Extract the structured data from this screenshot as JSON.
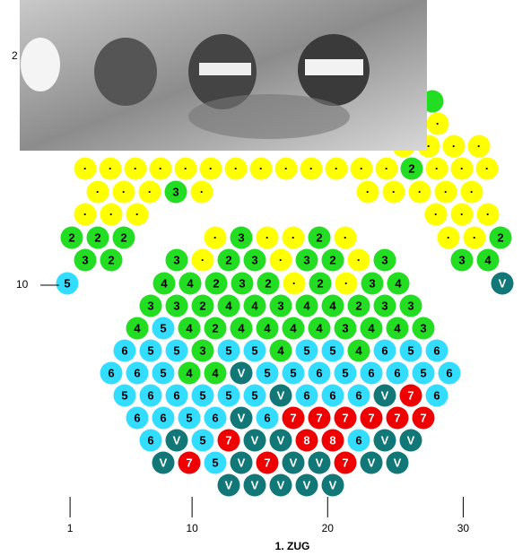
{
  "axis": {
    "xlim": [
      0,
      35
    ],
    "xticks": [
      1,
      10,
      20,
      30
    ],
    "title": "1. ZUG"
  },
  "row_labels": [
    "2",
    "10"
  ],
  "rows": [
    {
      "cells": [
        null
      ],
      "fills": [
        "#2d2"
      ]
    },
    {
      "cells": [
        "·"
      ],
      "fills": [
        "#ff0"
      ]
    },
    {
      "cells": [
        "·",
        "·",
        "·",
        "·"
      ],
      "fills": [
        "#ff0",
        "#ff0",
        "#ff0",
        "#ff0"
      ]
    },
    {
      "cells": [
        "·",
        "·",
        "·",
        "·",
        "·",
        "·",
        "·",
        "·",
        "·",
        "·",
        "·",
        "·",
        "·",
        "2",
        "·",
        "·",
        "·"
      ],
      "fills": [
        "#ff0",
        "#ff0",
        "#ff0",
        "#ff0",
        "#ff0",
        "#ff0",
        "#ff0",
        "#ff0",
        "#ff0",
        "#ff0",
        "#ff0",
        "#ff0",
        "#ff0",
        "#2d2",
        "#ff0",
        "#ff0",
        "#ff0"
      ]
    },
    {
      "cells": [
        "·",
        "·",
        "·",
        "3",
        "·",
        "·",
        "·",
        "·",
        "·",
        "·"
      ],
      "fills": [
        "#ff0",
        "#ff0",
        "#ff0",
        "#2d2",
        "#ff0",
        "#ff0",
        "#ff0",
        "#ff0",
        "#ff0",
        "#ff0"
      ]
    },
    {
      "cells": [
        "·",
        "·",
        "·",
        "·",
        "·",
        "·"
      ],
      "fills": [
        "#ff0",
        "#ff0",
        "#ff0",
        "#ff0",
        "#ff0",
        "#ff0"
      ]
    },
    {
      "cells": [
        "2",
        "2",
        "2",
        "·",
        "3",
        "·",
        "·",
        "2",
        "·",
        "·",
        "·",
        "2"
      ],
      "fills": [
        "#2d2",
        "#2d2",
        "#2d2",
        "#ff0",
        "#2d2",
        "#ff0",
        "#ff0",
        "#2d2",
        "#ff0",
        "#ff0",
        "#ff0",
        "#2d2"
      ]
    },
    {
      "cells": [
        "3",
        "2",
        "3",
        "·",
        "2",
        "3",
        "·",
        "3",
        "2",
        "·",
        "3",
        "3",
        "4"
      ],
      "fills": [
        "#2d2",
        "#2d2",
        "#2d2",
        "#ff0",
        "#2d2",
        "#2d2",
        "#ff0",
        "#2d2",
        "#2d2",
        "#ff0",
        "#2d2",
        "#2d2",
        "#2d2"
      ]
    },
    {
      "cells": [
        "5",
        "4",
        "4",
        "2",
        "3",
        "2",
        "·",
        "2",
        "·",
        "3",
        "4",
        "V"
      ],
      "fills": [
        "#3df",
        "#2d2",
        "#2d2",
        "#2d2",
        "#2d2",
        "#2d2",
        "#ff0",
        "#2d2",
        "#ff0",
        "#2d2",
        "#2d2",
        "#177"
      ]
    },
    {
      "cells": [
        "3",
        "3",
        "2",
        "4",
        "4",
        "3",
        "4",
        "4",
        "2",
        "3",
        "3"
      ],
      "fills": [
        "#2d2",
        "#2d2",
        "#2d2",
        "#2d2",
        "#2d2",
        "#2d2",
        "#2d2",
        "#2d2",
        "#2d2",
        "#2d2",
        "#2d2"
      ]
    },
    {
      "cells": [
        "4",
        "5",
        "4",
        "2",
        "4",
        "4",
        "4",
        "4",
        "3",
        "4",
        "4",
        "3"
      ],
      "fills": [
        "#2d2",
        "#3df",
        "#2d2",
        "#2d2",
        "#2d2",
        "#2d2",
        "#2d2",
        "#2d2",
        "#2d2",
        "#2d2",
        "#2d2",
        "#2d2"
      ]
    },
    {
      "cells": [
        "6",
        "5",
        "5",
        "3",
        "5",
        "5",
        "4",
        "5",
        "5",
        "4",
        "6",
        "5",
        "6"
      ],
      "fills": [
        "#3df",
        "#3df",
        "#3df",
        "#2d2",
        "#3df",
        "#3df",
        "#2d2",
        "#3df",
        "#3df",
        "#2d2",
        "#3df",
        "#3df",
        "#3df"
      ]
    },
    {
      "cells": [
        "6",
        "6",
        "5",
        "4",
        "4",
        "V",
        "5",
        "5",
        "6",
        "5",
        "6",
        "6",
        "5",
        "6"
      ],
      "fills": [
        "#3df",
        "#3df",
        "#3df",
        "#2d2",
        "#2d2",
        "#177",
        "#3df",
        "#3df",
        "#3df",
        "#3df",
        "#3df",
        "#3df",
        "#3df",
        "#3df"
      ]
    },
    {
      "cells": [
        "5",
        "6",
        "6",
        "5",
        "5",
        "5",
        "V",
        "6",
        "6",
        "6",
        "V",
        "7",
        "6"
      ],
      "fills": [
        "#3df",
        "#3df",
        "#3df",
        "#3df",
        "#3df",
        "#3df",
        "#177",
        "#3df",
        "#3df",
        "#3df",
        "#177",
        "#e00",
        "#3df"
      ]
    },
    {
      "cells": [
        "6",
        "6",
        "5",
        "6",
        "V",
        "6",
        "7",
        "7",
        "7",
        "7",
        "7",
        "7"
      ],
      "fills": [
        "#3df",
        "#3df",
        "#3df",
        "#3df",
        "#177",
        "#3df",
        "#e00",
        "#e00",
        "#e00",
        "#e00",
        "#e00",
        "#e00"
      ]
    },
    {
      "cells": [
        "6",
        "V",
        "5",
        "7",
        "V",
        "V",
        "8",
        "8",
        "6",
        "V",
        "V"
      ],
      "fills": [
        "#3df",
        "#177",
        "#3df",
        "#e00",
        "#177",
        "#177",
        "#e00",
        "#e00",
        "#3df",
        "#177",
        "#177"
      ]
    },
    {
      "cells": [
        "V",
        "7",
        "5",
        "V",
        "7",
        "V",
        "V",
        "7",
        "V",
        "V"
      ],
      "fills": [
        "#177",
        "#e00",
        "#3df",
        "#177",
        "#e00",
        "#177",
        "#177",
        "#e00",
        "#177",
        "#177"
      ]
    },
    {
      "cells": [
        "V",
        "V",
        "V",
        "V",
        "V"
      ],
      "fills": [
        "#177",
        "#177",
        "#177",
        "#177",
        "#177"
      ]
    }
  ]
}
